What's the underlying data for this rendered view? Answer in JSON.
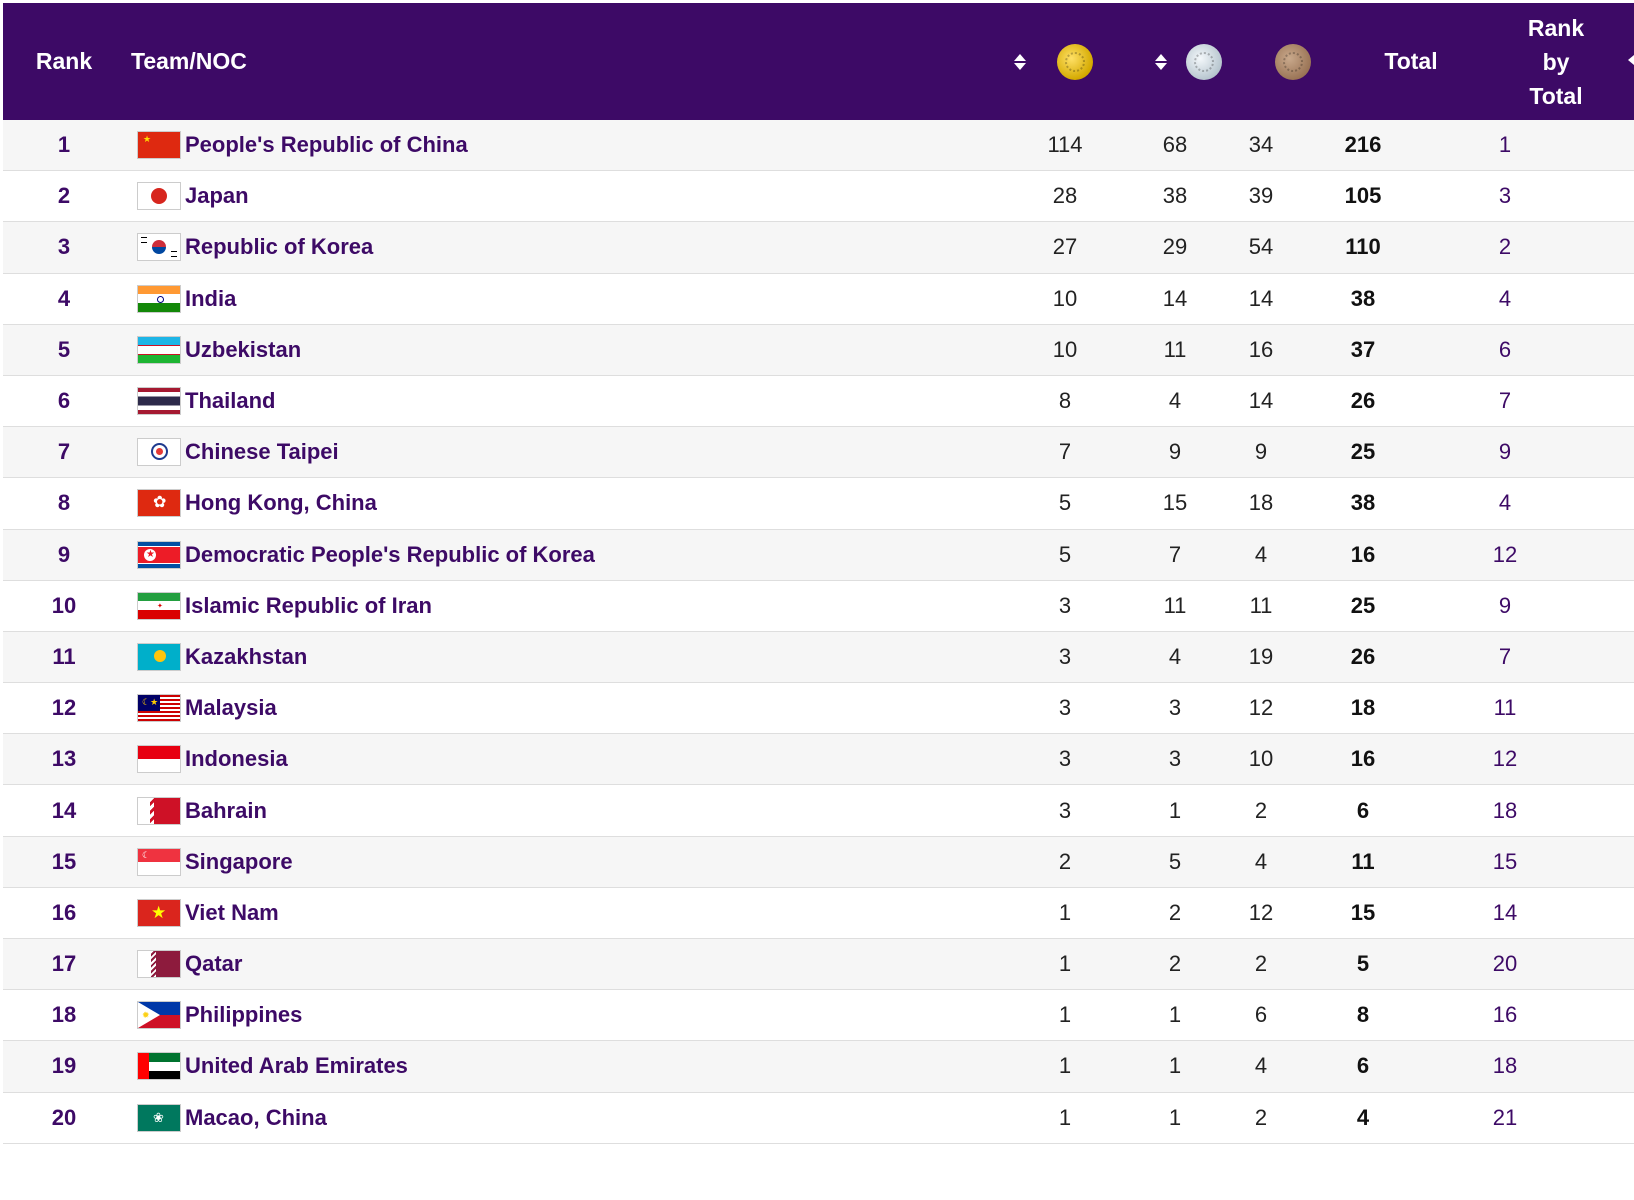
{
  "header": {
    "rank": "Rank",
    "team": "Team/NOC",
    "total": "Total",
    "rank_by_total_line1": "Rank",
    "rank_by_total_line2": "by",
    "rank_by_total_line3": "Total",
    "gold_icon": "gold-medal-icon",
    "silver_icon": "silver-medal-icon",
    "bronze_icon": "bronze-medal-icon",
    "sort_icon": "sort-icon"
  },
  "colors": {
    "header_bg": "#3d0a66",
    "accent_text": "#3d0a66",
    "alt_row_bg": "#f6f6f6"
  },
  "rows": [
    {
      "rank": "1",
      "team": "People's Republic of China",
      "gold": "114",
      "silver": "68",
      "bronze": "34",
      "total": "216",
      "rank_by_total": "1",
      "flag": "china-flag-icon"
    },
    {
      "rank": "2",
      "team": "Japan",
      "gold": "28",
      "silver": "38",
      "bronze": "39",
      "total": "105",
      "rank_by_total": "3",
      "flag": "japan-flag-icon"
    },
    {
      "rank": "3",
      "team": "Republic of Korea",
      "gold": "27",
      "silver": "29",
      "bronze": "54",
      "total": "110",
      "rank_by_total": "2",
      "flag": "korea-flag-icon"
    },
    {
      "rank": "4",
      "team": "India",
      "gold": "10",
      "silver": "14",
      "bronze": "14",
      "total": "38",
      "rank_by_total": "4",
      "flag": "india-flag-icon"
    },
    {
      "rank": "5",
      "team": "Uzbekistan",
      "gold": "10",
      "silver": "11",
      "bronze": "16",
      "total": "37",
      "rank_by_total": "6",
      "flag": "uzbekistan-flag-icon"
    },
    {
      "rank": "6",
      "team": "Thailand",
      "gold": "8",
      "silver": "4",
      "bronze": "14",
      "total": "26",
      "rank_by_total": "7",
      "flag": "thailand-flag-icon"
    },
    {
      "rank": "7",
      "team": "Chinese Taipei",
      "gold": "7",
      "silver": "9",
      "bronze": "9",
      "total": "25",
      "rank_by_total": "9",
      "flag": "chinese-taipei-flag-icon"
    },
    {
      "rank": "8",
      "team": "Hong Kong, China",
      "gold": "5",
      "silver": "15",
      "bronze": "18",
      "total": "38",
      "rank_by_total": "4",
      "flag": "hong-kong-flag-icon"
    },
    {
      "rank": "9",
      "team": "Democratic People's Republic of Korea",
      "gold": "5",
      "silver": "7",
      "bronze": "4",
      "total": "16",
      "rank_by_total": "12",
      "flag": "dpr-korea-flag-icon"
    },
    {
      "rank": "10",
      "team": "Islamic Republic of Iran",
      "gold": "3",
      "silver": "11",
      "bronze": "11",
      "total": "25",
      "rank_by_total": "9",
      "flag": "iran-flag-icon"
    },
    {
      "rank": "11",
      "team": "Kazakhstan",
      "gold": "3",
      "silver": "4",
      "bronze": "19",
      "total": "26",
      "rank_by_total": "7",
      "flag": "kazakhstan-flag-icon"
    },
    {
      "rank": "12",
      "team": "Malaysia",
      "gold": "3",
      "silver": "3",
      "bronze": "12",
      "total": "18",
      "rank_by_total": "11",
      "flag": "malaysia-flag-icon"
    },
    {
      "rank": "13",
      "team": "Indonesia",
      "gold": "3",
      "silver": "3",
      "bronze": "10",
      "total": "16",
      "rank_by_total": "12",
      "flag": "indonesia-flag-icon"
    },
    {
      "rank": "14",
      "team": "Bahrain",
      "gold": "3",
      "silver": "1",
      "bronze": "2",
      "total": "6",
      "rank_by_total": "18",
      "flag": "bahrain-flag-icon"
    },
    {
      "rank": "15",
      "team": "Singapore",
      "gold": "2",
      "silver": "5",
      "bronze": "4",
      "total": "11",
      "rank_by_total": "15",
      "flag": "singapore-flag-icon"
    },
    {
      "rank": "16",
      "team": "Viet Nam",
      "gold": "1",
      "silver": "2",
      "bronze": "12",
      "total": "15",
      "rank_by_total": "14",
      "flag": "viet-nam-flag-icon"
    },
    {
      "rank": "17",
      "team": "Qatar",
      "gold": "1",
      "silver": "2",
      "bronze": "2",
      "total": "5",
      "rank_by_total": "20",
      "flag": "qatar-flag-icon"
    },
    {
      "rank": "18",
      "team": "Philippines",
      "gold": "1",
      "silver": "1",
      "bronze": "6",
      "total": "8",
      "rank_by_total": "16",
      "flag": "philippines-flag-icon"
    },
    {
      "rank": "19",
      "team": "United Arab Emirates",
      "gold": "1",
      "silver": "1",
      "bronze": "4",
      "total": "6",
      "rank_by_total": "18",
      "flag": "uae-flag-icon"
    },
    {
      "rank": "20",
      "team": "Macao, China",
      "gold": "1",
      "silver": "1",
      "bronze": "2",
      "total": "4",
      "rank_by_total": "21",
      "flag": "macao-flag-icon"
    }
  ]
}
